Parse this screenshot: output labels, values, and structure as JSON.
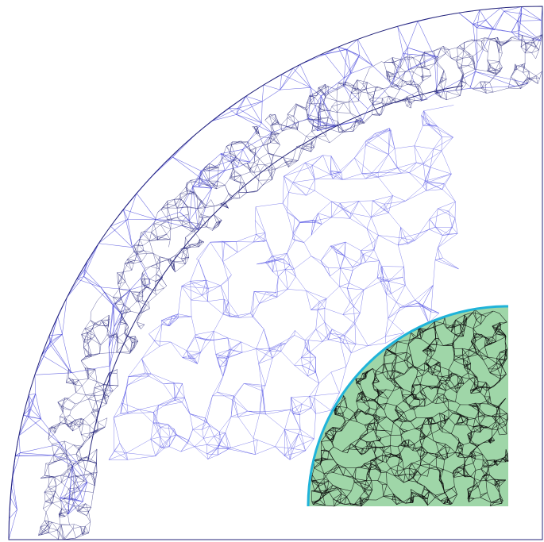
{
  "figure": {
    "kind": "finite-element tetrahedral mesh, quarter-cylinder cross-section with embedded quarter-sphere",
    "colors": {
      "background": "#ffffff",
      "outer_mesh_edge": "#3b3bd8",
      "shell_mesh_edge": "#26267a",
      "inner_mesh_edge": "#5a5ae6",
      "sphere_fill": "#9fd6a8",
      "sphere_edge": "#0a0a0a",
      "sphere_rim": "#1fb3d9"
    }
  }
}
